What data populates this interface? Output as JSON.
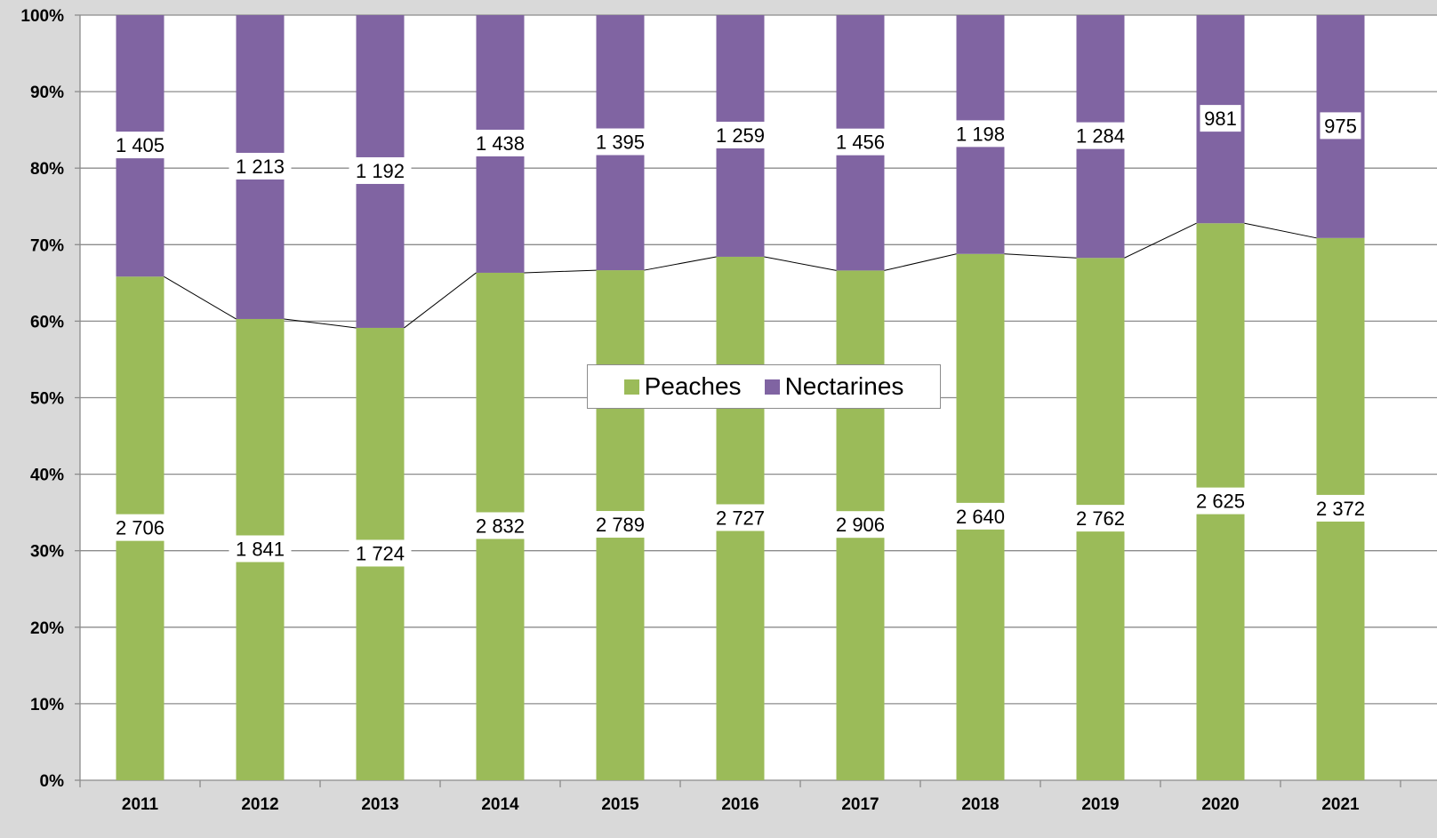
{
  "chart_data": {
    "type": "bar",
    "stacked": "percent",
    "title": "",
    "xlabel": "",
    "ylabel": "",
    "categories": [
      "2011",
      "2012",
      "2013",
      "2014",
      "2015",
      "2016",
      "2017",
      "2018",
      "2019",
      "2020",
      "2021"
    ],
    "series": [
      {
        "name": "Peaches",
        "color": "#9bbb59",
        "values": [
          2706,
          1841,
          1724,
          2832,
          2789,
          2727,
          2906,
          2640,
          2762,
          2625,
          2372
        ],
        "labels": [
          "2 706",
          "1 841",
          "1 724",
          "2 832",
          "2 789",
          "2 727",
          "2 906",
          "2 640",
          "2 762",
          "2 625",
          "2 372"
        ]
      },
      {
        "name": "Nectarines",
        "color": "#8064a2",
        "values": [
          1405,
          1213,
          1192,
          1438,
          1395,
          1259,
          1456,
          1198,
          1284,
          981,
          975
        ],
        "labels": [
          "1 405",
          "1 213",
          "1 192",
          "1 438",
          "1 395",
          "1 259",
          "1 456",
          "1 198",
          "1 284",
          "981",
          "975"
        ]
      }
    ],
    "ylim": [
      0,
      100
    ],
    "yticks": [
      "0%",
      "10%",
      "20%",
      "30%",
      "40%",
      "50%",
      "60%",
      "70%",
      "80%",
      "90%",
      "100%"
    ],
    "grid": true,
    "series_line": "Peaches share (line connecting top of Peaches segments)",
    "legend_position": "center"
  }
}
